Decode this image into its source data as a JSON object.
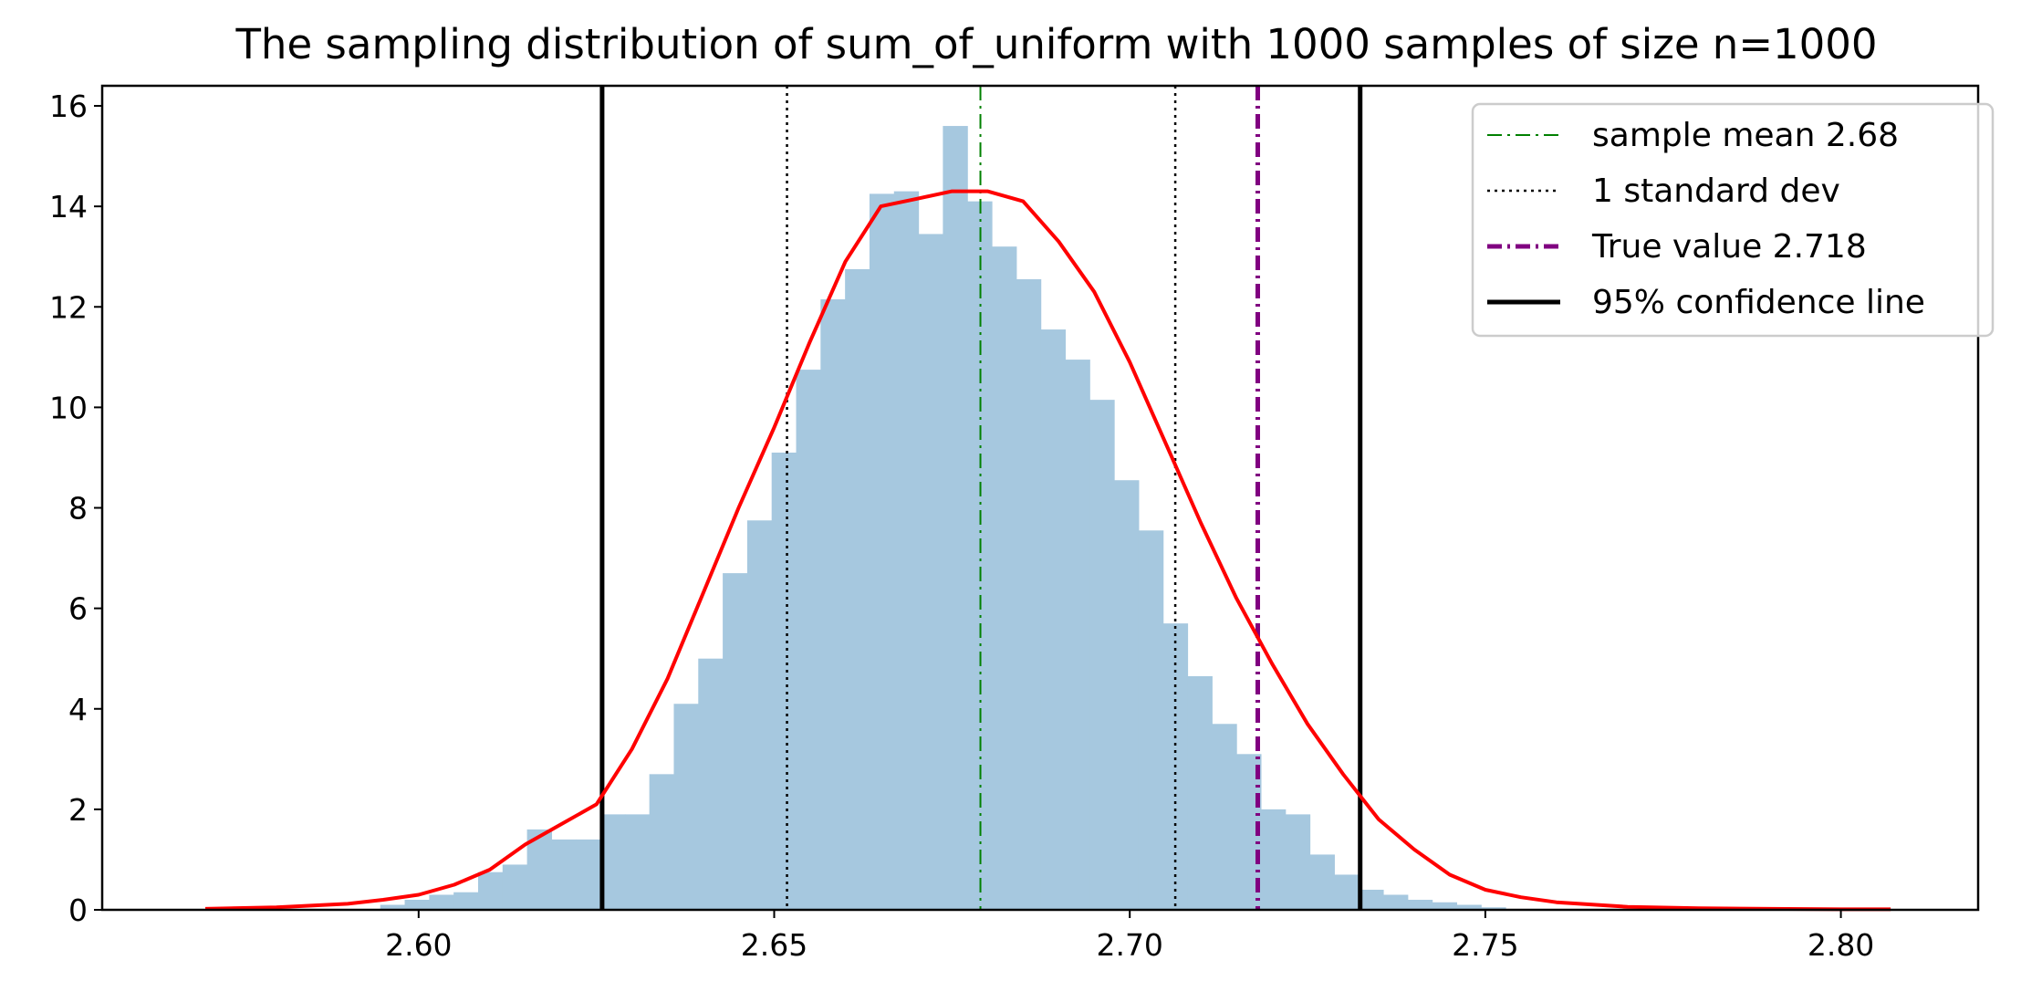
{
  "chart_data": {
    "type": "bar",
    "title": "The sampling distribution of sum_of_uniform with 1000 samples of size n=1000",
    "xlabel": "",
    "ylabel": "",
    "xlim": [
      2.5555,
      2.8193
    ],
    "ylim": [
      0,
      16.4
    ],
    "xticks": [
      2.6,
      2.65,
      2.7,
      2.75,
      2.8
    ],
    "xtick_labels": [
      "2.60",
      "2.65",
      "2.70",
      "2.75",
      "2.80"
    ],
    "yticks": [
      0,
      2,
      4,
      6,
      8,
      10,
      12,
      14,
      16
    ],
    "ytick_labels": [
      "0",
      "2",
      "4",
      "6",
      "8",
      "10",
      "12",
      "14",
      "16"
    ],
    "grid": false,
    "legend_position": "upper right",
    "histogram": {
      "color": "#a6c8df",
      "bin_width": 0.00344,
      "bin_starts": [
        2.5946,
        2.59804,
        2.60148,
        2.60492,
        2.60836,
        2.6118,
        2.61524,
        2.61868,
        2.62212,
        2.62556,
        2.629,
        2.63244,
        2.63588,
        2.63932,
        2.64276,
        2.6462,
        2.64964,
        2.65308,
        2.65652,
        2.65996,
        2.6634,
        2.66684,
        2.67028,
        2.67372,
        2.67716,
        2.6806,
        2.68404,
        2.68748,
        2.69092,
        2.69436,
        2.6978,
        2.70124,
        2.70468,
        2.70812,
        2.71156,
        2.715,
        2.71844,
        2.72188,
        2.72532,
        2.72876,
        2.7322,
        2.73564,
        2.73908,
        2.74252,
        2.74596,
        2.7494
      ],
      "density": [
        0.1,
        0.2,
        0.3,
        0.35,
        0.75,
        0.9,
        1.6,
        1.4,
        1.4,
        1.9,
        1.9,
        2.7,
        4.1,
        5.0,
        6.7,
        7.75,
        9.1,
        10.75,
        12.15,
        12.75,
        14.25,
        14.3,
        13.45,
        15.6,
        14.1,
        13.2,
        12.55,
        11.55,
        10.95,
        10.15,
        8.55,
        7.55,
        5.7,
        4.65,
        3.7,
        3.1,
        2.0,
        1.9,
        1.1,
        0.7,
        0.4,
        0.3,
        0.2,
        0.15,
        0.1,
        0.05
      ]
    },
    "kde": {
      "color": "#ff0000",
      "x": [
        2.57,
        2.58,
        2.59,
        2.595,
        2.6,
        2.605,
        2.61,
        2.615,
        2.62,
        2.625,
        2.63,
        2.635,
        2.64,
        2.645,
        2.65,
        2.655,
        2.66,
        2.665,
        2.67,
        2.675,
        2.68,
        2.685,
        2.69,
        2.695,
        2.7,
        2.705,
        2.71,
        2.715,
        2.72,
        2.725,
        2.73,
        2.735,
        2.74,
        2.745,
        2.75,
        2.755,
        2.76,
        2.77,
        2.78,
        2.79,
        2.8,
        2.807
      ],
      "y": [
        0.02,
        0.05,
        0.12,
        0.2,
        0.3,
        0.5,
        0.8,
        1.3,
        1.7,
        2.1,
        3.2,
        4.6,
        6.3,
        8.0,
        9.6,
        11.3,
        12.9,
        14.0,
        14.15,
        14.3,
        14.3,
        14.1,
        13.3,
        12.3,
        10.9,
        9.3,
        7.7,
        6.2,
        4.9,
        3.7,
        2.7,
        1.8,
        1.2,
        0.7,
        0.4,
        0.25,
        0.15,
        0.06,
        0.03,
        0.02,
        0.01,
        0.01
      ]
    },
    "vlines": [
      {
        "x": 2.679,
        "color": "#008000",
        "style": "dashdot",
        "width": 2
      },
      {
        "x": 2.6518,
        "color": "#000000",
        "style": "dotted",
        "width": 2.5
      },
      {
        "x": 2.7064,
        "color": "#000000",
        "style": "dotted",
        "width": 2.5
      },
      {
        "x": 2.718,
        "color": "#800080",
        "style": "dashdot",
        "width": 5
      },
      {
        "x": 2.6258,
        "color": "#000000",
        "style": "solid",
        "width": 5
      },
      {
        "x": 2.7324,
        "color": "#000000",
        "style": "solid",
        "width": 5
      }
    ],
    "legend": [
      {
        "label": "sample mean 2.68",
        "color": "#008000",
        "style": "dashdot",
        "width": 2
      },
      {
        "label": "1 standard dev",
        "color": "#000000",
        "style": "dotted",
        "width": 2.5
      },
      {
        "label": "True value 2.718",
        "color": "#800080",
        "style": "dashdot",
        "width": 5
      },
      {
        "label": "95% confidence line",
        "color": "#000000",
        "style": "solid",
        "width": 5
      }
    ]
  }
}
